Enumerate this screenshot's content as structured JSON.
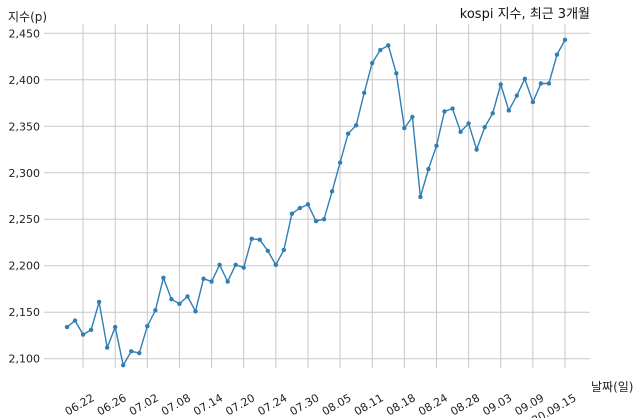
{
  "chart_data": {
    "type": "line",
    "title": "kospi 지수, 최근 3개월",
    "ylabel": "지수(p)",
    "xlabel": "날짜(일)",
    "ylim": [
      2090,
      2460
    ],
    "yticks": [
      2100,
      2150,
      2200,
      2250,
      2300,
      2350,
      2400,
      2450
    ],
    "ytick_labels": [
      "2,100",
      "2,150",
      "2,200",
      "2,250",
      "2,300",
      "2,350",
      "2,400",
      "2,450"
    ],
    "xtick_labels": [
      "06.22",
      "06.26",
      "07.02",
      "07.08",
      "07.14",
      "07.20",
      "07.24",
      "07.30",
      "08.05",
      "08.11",
      "08.18",
      "08.24",
      "08.28",
      "09.03",
      "09.09",
      "20.09.15"
    ],
    "xtick_index": [
      2,
      6,
      10,
      14,
      18,
      22,
      26,
      30,
      34,
      38,
      42,
      46,
      50,
      54,
      58,
      62
    ],
    "grid": true,
    "series": [
      {
        "color": "#2f7fb5",
        "values": [
          2134,
          2141,
          2126,
          2131,
          2161,
          2112,
          2134,
          2093,
          2108,
          2106,
          2135,
          2152,
          2187,
          2164,
          2159,
          2167,
          2151,
          2186,
          2183,
          2201,
          2183,
          2201,
          2198,
          2229,
          2228,
          2216,
          2201,
          2217,
          2256,
          2262,
          2266,
          2248,
          2250,
          2280,
          2311,
          2342,
          2351,
          2386,
          2418,
          2432,
          2437,
          2407,
          2348,
          2360,
          2274,
          2304,
          2329,
          2366,
          2369,
          2344,
          2353,
          2325,
          2349,
          2364,
          2395,
          2367,
          2383,
          2401,
          2376,
          2396,
          2396,
          2427,
          2443
        ]
      }
    ]
  }
}
